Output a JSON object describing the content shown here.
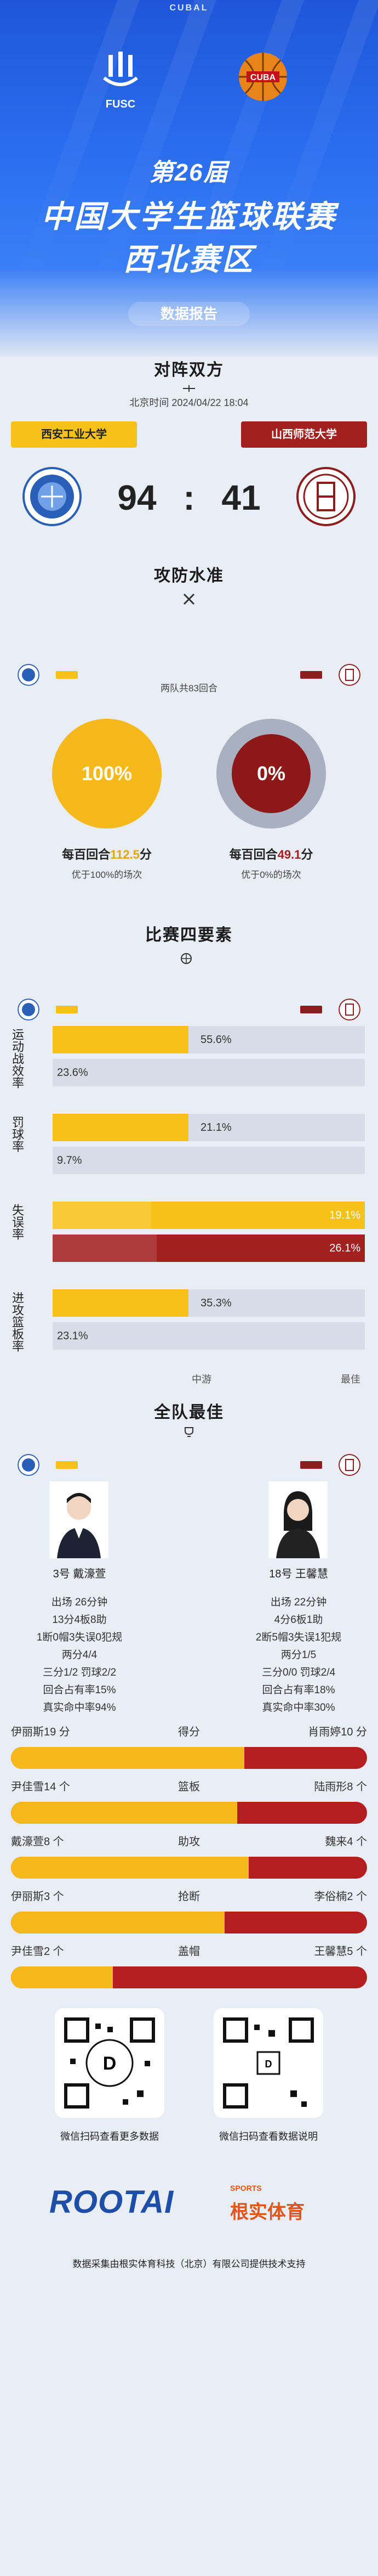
{
  "header": {
    "brand": "CUBAL",
    "left_logo_text": "FUSC",
    "right_logo_text": "CUBA",
    "title_line1": "第26届",
    "title_line2": "中国大学生篮球联赛",
    "title_line3": "西北赛区",
    "subtitle": "数据报告"
  },
  "match": {
    "heading": "对阵双方",
    "time": "北京时间 2024/04/22 18:04",
    "team_left": "西安工业大学",
    "team_right": "山西师范大学",
    "score_left": "94",
    "score_sep": ":",
    "score_right": "41"
  },
  "offdef": {
    "heading": "攻防水准",
    "rounds": "两队共83回合",
    "left_pct": "100%",
    "right_pct": "0%",
    "left_per100_pre": "每百回合",
    "left_per100_val": "112.5",
    "left_per100_post": "分",
    "right_per100_pre": "每百回合",
    "right_per100_val": "49.1",
    "right_per100_post": "分",
    "left_better": "优于100%的场次",
    "right_better": "优于0%的场次"
  },
  "factors": {
    "heading": "比赛四要素",
    "items": [
      {
        "label": "运动战效率",
        "left": 55.6,
        "right": 23.6,
        "left_text": "55.6%",
        "right_text": "23.6%",
        "style": "lighter"
      },
      {
        "label": "罚球率",
        "left": 21.1,
        "right": 9.7,
        "left_text": "21.1%",
        "right_text": "9.7%",
        "style": "lighter"
      },
      {
        "label": "失误率",
        "left": 19.1,
        "right": 26.1,
        "left_text": "19.1%",
        "right_text": "26.1%",
        "style": "full"
      },
      {
        "label": "进攻篮板率",
        "left": 35.3,
        "right": 23.1,
        "left_text": "35.3%",
        "right_text": "23.1%",
        "style": "lighter"
      }
    ],
    "axis_mid": "中游",
    "axis_right": "最佳"
  },
  "best": {
    "heading": "全队最佳",
    "left_player": "3号 戴濠萱",
    "right_player": "18号 王馨慧",
    "left_stats": [
      "出场 26分钟",
      "13分4板8助",
      "1断0帽3失误0犯规",
      "两分4/4",
      "三分1/2 罚球2/2",
      "回合占有率15%",
      "真实命中率94%"
    ],
    "right_stats": [
      "出场 22分钟",
      "4分6板1助",
      "2断5帽3失误1犯规",
      "两分1/5",
      "三分0/0 罚球2/4",
      "回合占有率18%",
      "真实命中率30%"
    ],
    "compare": [
      {
        "left": "伊丽斯19 分",
        "mid": "得分",
        "right": "肖雨婷10 分",
        "ratio": 0.655
      },
      {
        "left": "尹佳雪14 个",
        "mid": "篮板",
        "right": "陆雨形8 个",
        "ratio": 0.636
      },
      {
        "left": "戴濠萱8 个",
        "mid": "助攻",
        "right": "魏来4 个",
        "ratio": 0.667
      },
      {
        "left": "伊丽斯3 个",
        "mid": "抢断",
        "right": "李俗楠2 个",
        "ratio": 0.6
      },
      {
        "left": "尹佳雪2 个",
        "mid": "盖帽",
        "right": "王馨慧5 个",
        "ratio": 0.286
      }
    ]
  },
  "footer": {
    "qr_left_caption": "微信扫码查看更多数据",
    "qr_right_caption": "微信扫码查看数据说明",
    "logo_text": "ROOTAI",
    "logo_sub": "SPORTS",
    "logo_cn": "根实体育",
    "bottom_text": "数据采集由根实体育科技（北京）有限公司提供技术支持"
  },
  "colors": {
    "blue": "#2b6ff0",
    "yellow": "#f6b81a",
    "red": "#a32020"
  }
}
